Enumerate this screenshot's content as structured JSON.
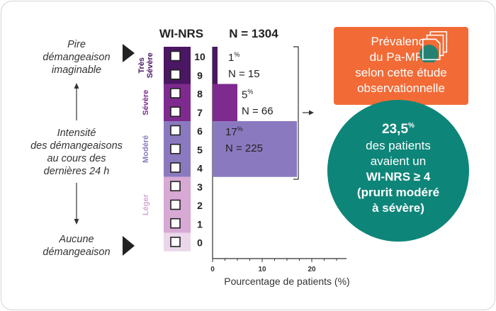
{
  "header": {
    "scale_name": "WI-NRS",
    "sample": "N = 1304"
  },
  "left_labels": {
    "top": [
      "Pire",
      "démangeaison",
      "imaginable"
    ],
    "middle": [
      "Intensité",
      "des démangeaisons",
      "au cours des",
      "dernières 24 h"
    ],
    "bottom": [
      "Aucune",
      "démangeaison"
    ]
  },
  "severity_bands": [
    {
      "label_lines": [
        "Très",
        "Sévère"
      ],
      "scores": [
        10,
        9
      ],
      "color": "#4b1663",
      "text_color": "#4b1663"
    },
    {
      "label_lines": [
        "Sévère"
      ],
      "scores": [
        8,
        7
      ],
      "color": "#7e2a8f",
      "text_color": "#7e2a8f"
    },
    {
      "label_lines": [
        "Modéré"
      ],
      "scores": [
        6,
        5,
        4
      ],
      "color": "#8b79bf",
      "text_color": "#8b79bf"
    },
    {
      "label_lines": [
        "Léger"
      ],
      "scores": [
        3,
        2,
        1
      ],
      "color": "#d7a9d4",
      "text_color": "#d7a9d4"
    },
    {
      "label_lines": [],
      "scores": [
        0
      ],
      "color": "#ead7ea",
      "text_color": "#ead7ea"
    }
  ],
  "chart_data": {
    "type": "bar",
    "orientation": "horizontal",
    "categories": [
      "Très Sévère (WI-NRS 9–10)",
      "Sévère (WI-NRS 7–8)",
      "Modéré (WI-NRS 4–6)"
    ],
    "values": [
      1,
      5,
      17
    ],
    "percent_labels": [
      "1",
      "5",
      "17"
    ],
    "percent_suffix": "%",
    "n_labels": [
      "N = 15",
      "N = 66",
      "N = 225"
    ],
    "colors": [
      "#4b1663",
      "#7e2a8f",
      "#8b79bf"
    ],
    "xlabel": "Pourcentage de patients (%)",
    "x_ticks": [
      0,
      10,
      20
    ],
    "xlim": [
      0,
      27
    ]
  },
  "callout": {
    "title_lines": [
      "Prévalence",
      "du Pa-MRC",
      "selon cette étude",
      "observationnelle"
    ],
    "icon": "document-stack-icon",
    "color": "#f26b36"
  },
  "result": {
    "value": "23,5",
    "suffix": "%",
    "lines": [
      "des patients",
      "avaient un"
    ],
    "bold_lines": [
      "WI-NRS ≥ 4",
      "(prurit modéré",
      "à sévère)"
    ],
    "color": "#0e8579"
  }
}
